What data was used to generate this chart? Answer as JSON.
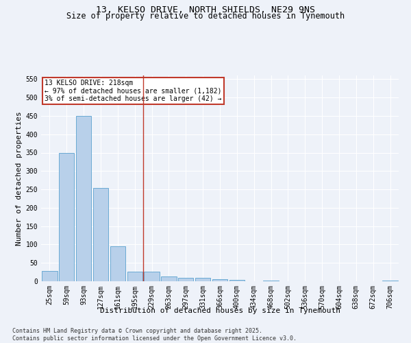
{
  "title": "13, KELSO DRIVE, NORTH SHIELDS, NE29 9NS",
  "subtitle": "Size of property relative to detached houses in Tynemouth",
  "xlabel": "Distribution of detached houses by size in Tynemouth",
  "ylabel": "Number of detached properties",
  "footnote": "Contains HM Land Registry data © Crown copyright and database right 2025.\nContains public sector information licensed under the Open Government Licence v3.0.",
  "categories": [
    "25sqm",
    "59sqm",
    "93sqm",
    "127sqm",
    "161sqm",
    "195sqm",
    "229sqm",
    "263sqm",
    "297sqm",
    "331sqm",
    "366sqm",
    "400sqm",
    "434sqm",
    "468sqm",
    "502sqm",
    "536sqm",
    "570sqm",
    "604sqm",
    "638sqm",
    "672sqm",
    "706sqm"
  ],
  "values": [
    28,
    350,
    450,
    253,
    95,
    26,
    26,
    14,
    10,
    9,
    5,
    4,
    0,
    1,
    0,
    0,
    0,
    0,
    0,
    0,
    2
  ],
  "bar_color": "#b8d0ea",
  "bar_edge_color": "#6aaad4",
  "vline_x": 5.5,
  "vline_color": "#c0392b",
  "annotation_text": "13 KELSO DRIVE: 218sqm\n← 97% of detached houses are smaller (1,182)\n3% of semi-detached houses are larger (42) →",
  "annotation_box_color": "#c0392b",
  "ylim": [
    0,
    560
  ],
  "yticks": [
    0,
    50,
    100,
    150,
    200,
    250,
    300,
    350,
    400,
    450,
    500,
    550
  ],
  "bg_color": "#eef2f9",
  "grid_color": "#ffffff",
  "title_fontsize": 9.5,
  "subtitle_fontsize": 8.5,
  "axis_label_fontsize": 8,
  "tick_fontsize": 7,
  "footnote_fontsize": 6
}
